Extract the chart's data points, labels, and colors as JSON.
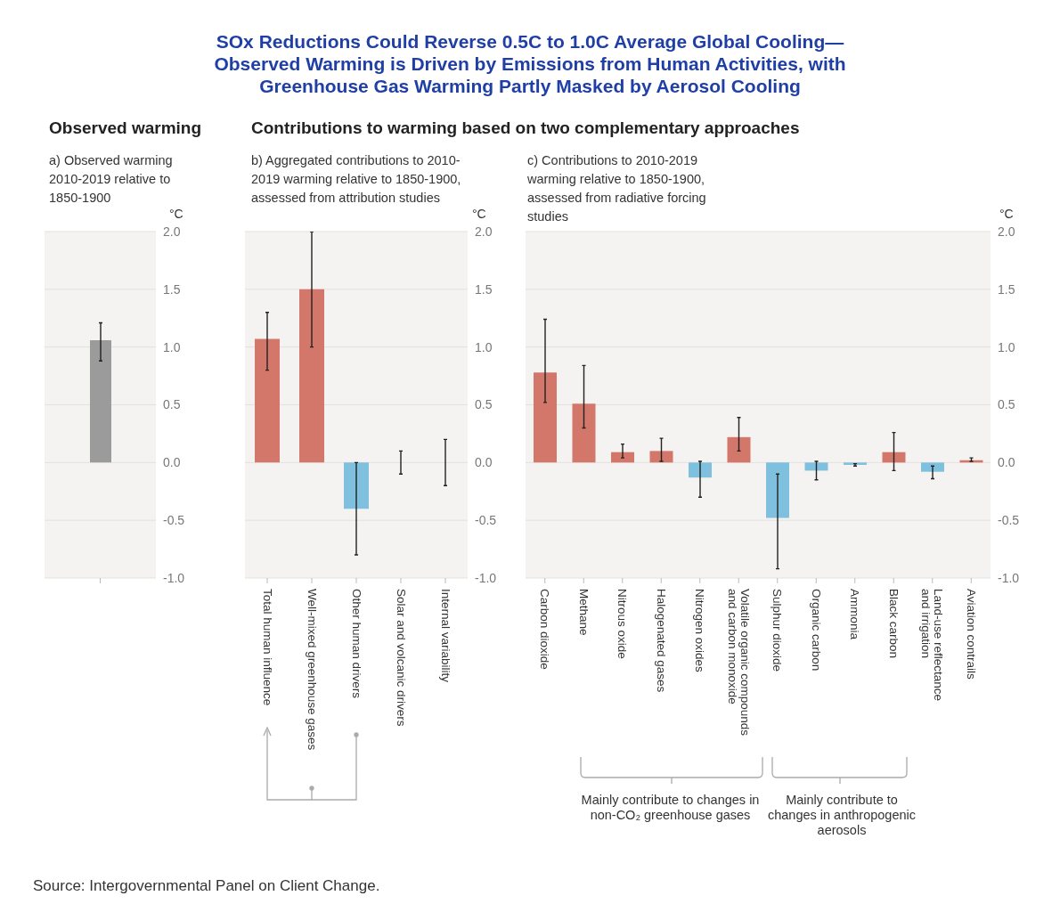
{
  "chart_data": [
    {
      "type": "bar",
      "title": "Observed warming",
      "subtitle": "a) Observed warming 2010-2019 relative to 1850-1900",
      "ylabel": "°C",
      "annotations": [
        "Source: Intergovernmental Panel on Client Change."
      ],
      "categories": [
        null
      ],
      "values": [
        1.06
      ],
      "colors": [
        "#9b9b9b"
      ],
      "errors": [
        [
          0.88,
          1.21
        ]
      ],
      "ylim": [
        -1,
        2
      ],
      "yticks": [
        {
          "value": -1,
          "label": "-1.0"
        },
        {
          "value": -0.5,
          "label": "-0.5"
        },
        {
          "value": 0,
          "label": "0.0"
        },
        {
          "value": 0.5,
          "label": "0.5"
        },
        {
          "value": 1,
          "label": "1.0"
        },
        {
          "value": 1.5,
          "label": "1.5"
        },
        {
          "value": 2,
          "label": "2.0"
        }
      ],
      "grid": "y"
    },
    {
      "type": "bar",
      "title": "SOx Reductions Could Reverse 0.5C to 1.0C Average Global Cooling—Observed Warming is Driven by Emissions from Human Activities, with Greenhouse Gas Warming Partly Masked by Aerosol Cooling",
      "annotations": [
        "Contributions to warming based on two complementary approaches"
      ],
      "subtitle": "b) Aggregated contributions to 2010-2019 warming relative to 1850-1900, assessed from attribution studies",
      "ylabel": "°C",
      "categories": [
        "Total human influence",
        "Well-mixed greenhouse gases",
        "Other human drivers",
        "Solar and volcanic drivers",
        "Internal variability"
      ],
      "values": [
        1.07,
        1.5,
        -0.4,
        0,
        0
      ],
      "colors": [
        "#d4776b",
        "#d4776b",
        "#7ec0dd",
        "#d4776b",
        "#d4776b"
      ],
      "errors": [
        [
          0.8,
          1.3
        ],
        [
          1.0,
          2.0
        ],
        [
          -0.8,
          0.0
        ],
        [
          -0.1,
          0.1
        ],
        [
          -0.2,
          0.2
        ]
      ],
      "ylim": [
        -1,
        2
      ],
      "yticks": [
        {
          "value": -1,
          "label": "-1.0"
        },
        {
          "value": -0.5,
          "label": "-0.5"
        },
        {
          "value": 0,
          "label": "0.0"
        },
        {
          "value": 0.5,
          "label": "0.5"
        },
        {
          "value": 1,
          "label": "1.0"
        },
        {
          "value": 1.5,
          "label": "1.5"
        },
        {
          "value": 2,
          "label": "2.0"
        }
      ],
      "grid": "y"
    },
    {
      "type": "bar",
      "subtitle": "c) Contributions to 2010-2019 warming relative to 1850-1900, assessed from radiative forcing studies",
      "ylabel": "°C",
      "annotations": [
        "Mainly contribute to changes in non-CO₂ greenhouse gases",
        "Mainly contribute to changes in anthropogenic aerosols"
      ],
      "categories": [
        "Carbon dioxide",
        "Methane",
        "Nitrous oxide",
        "Halogenated gases",
        "Nitrogen oxides",
        "Volatile organic compounds and carbon monoxide",
        "Sulphur dioxide",
        "Organic carbon",
        "Ammonia",
        "Black carbon",
        "Land-use reflectance and irrigation",
        "Aviation contrails"
      ],
      "values": [
        0.78,
        0.51,
        0.09,
        0.1,
        -0.13,
        0.22,
        -0.48,
        -0.07,
        -0.02,
        0.09,
        -0.08,
        0.02
      ],
      "colors": [
        "#d4776b",
        "#d4776b",
        "#d4776b",
        "#d4776b",
        "#7ec0dd",
        "#d4776b",
        "#7ec0dd",
        "#7ec0dd",
        "#7ec0dd",
        "#d4776b",
        "#7ec0dd",
        "#d4776b"
      ],
      "errors": [
        [
          0.52,
          1.24
        ],
        [
          0.3,
          0.84
        ],
        [
          0.04,
          0.16
        ],
        [
          0.01,
          0.21
        ],
        [
          -0.3,
          0.01
        ],
        [
          0.1,
          0.39
        ],
        [
          -0.92,
          -0.1
        ],
        [
          -0.15,
          0.01
        ],
        [
          -0.03,
          -0.01
        ],
        [
          -0.07,
          0.26
        ],
        [
          -0.14,
          -0.03
        ],
        [
          0.01,
          0.04
        ]
      ],
      "ylim": [
        -1,
        2
      ],
      "yticks": [
        {
          "value": -1,
          "label": "-1.0"
        },
        {
          "value": -0.5,
          "label": "-0.5"
        },
        {
          "value": 0,
          "label": "0.0"
        },
        {
          "value": 0.5,
          "label": "0.5"
        },
        {
          "value": 1,
          "label": "1.0"
        },
        {
          "value": 1.5,
          "label": "1.5"
        },
        {
          "value": 2,
          "label": "2.0"
        }
      ],
      "grid": "y"
    }
  ]
}
